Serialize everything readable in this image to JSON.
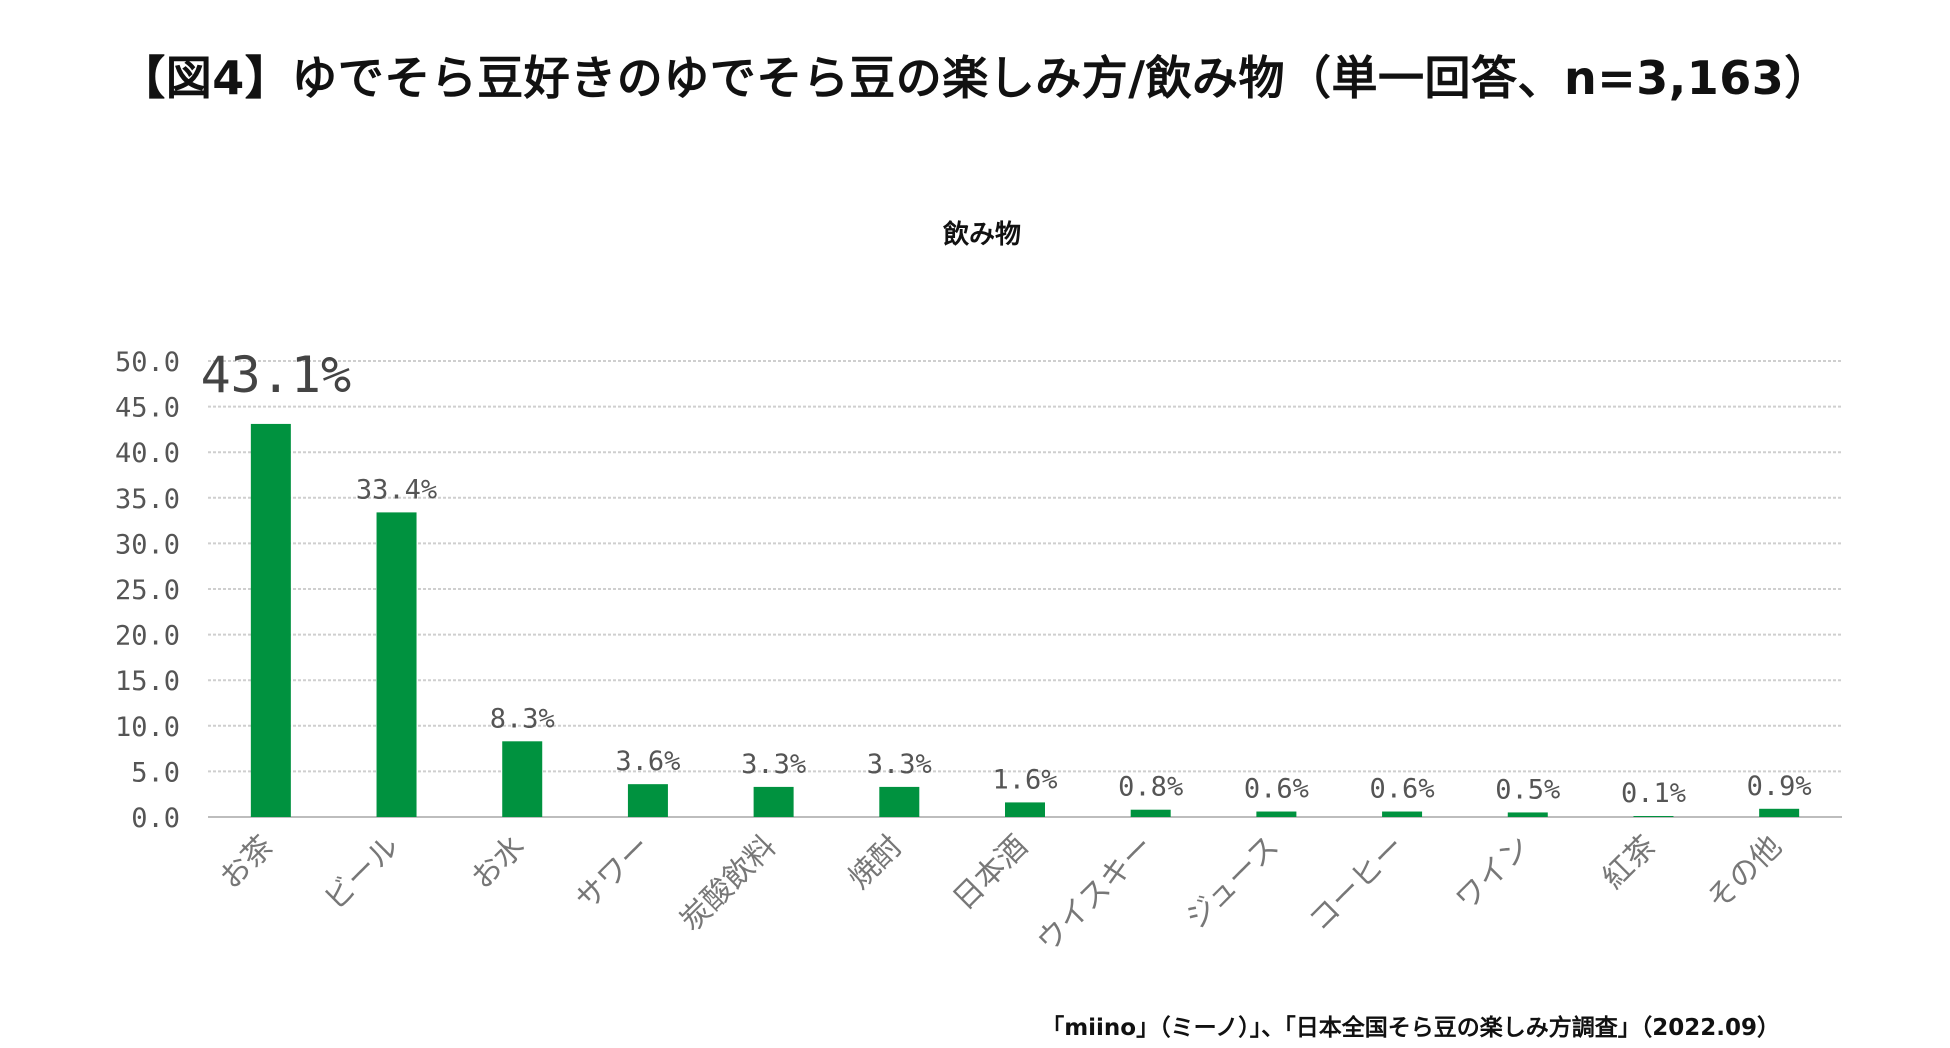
{
  "page": {
    "main_title": "【図4】ゆでそら豆好きのゆでそら豆の楽しみ方/飲み物（単一回答、n=3,163）",
    "source_note": "「miino」（ミーノ）」、「日本全国そら豆の楽しみ方調査」（2022.09）"
  },
  "chart_data": {
    "type": "bar",
    "title": "飲み物",
    "xlabel": "",
    "ylabel": "",
    "categories": [
      "お茶",
      "ビール",
      "お水",
      "サワー",
      "炭酸飲料",
      "焼酎",
      "日本酒",
      "ウイスキー",
      "ジュース",
      "コーヒー",
      "ワイン",
      "紅茶",
      "その他"
    ],
    "values": [
      43.1,
      33.4,
      8.3,
      3.6,
      3.3,
      3.3,
      1.6,
      0.8,
      0.6,
      0.6,
      0.5,
      0.1,
      0.9
    ],
    "data_labels": [
      "43.1%",
      "33.4%",
      "8.3%",
      "3.6%",
      "3.3%",
      "3.3%",
      "1.6%",
      "0.8%",
      "0.6%",
      "0.6%",
      "0.5%",
      "0.1%",
      "0.9%"
    ],
    "ylim": [
      0,
      50
    ],
    "y_ticks": [
      "0.0",
      "5.0",
      "10.0",
      "15.0",
      "20.0",
      "25.0",
      "30.0",
      "35.0",
      "40.0",
      "45.0",
      "50.0"
    ],
    "grid": true,
    "legend": "none",
    "bar_color": "#00923f"
  }
}
